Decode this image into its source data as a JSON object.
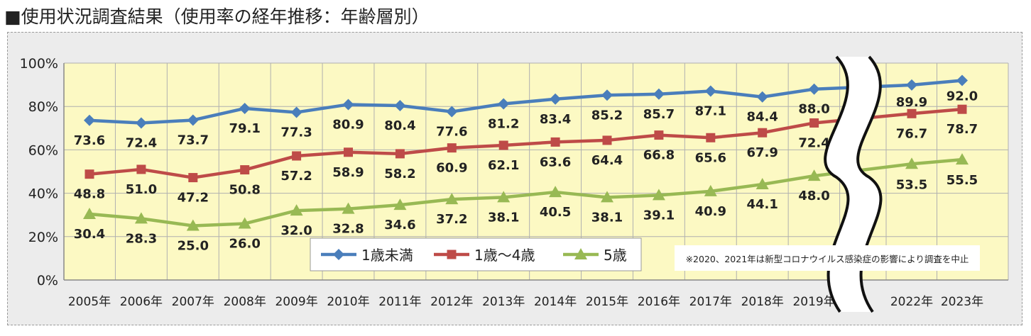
{
  "title": "■使用状況調査結果（使用率の経年推移：年齢層別）",
  "colors": {
    "plot_bg": "#fcf9c3",
    "grid": "#b0b0b0",
    "series1": "#4a7ebb",
    "series2": "#be4b48",
    "series3": "#98b954"
  },
  "chart_data": {
    "type": "line",
    "title": "使用状況調査結果（使用率の経年推移：年齢層別）",
    "categories": [
      "2005年",
      "2006年",
      "2007年",
      "2008年",
      "2009年",
      "2010年",
      "2011年",
      "2012年",
      "2013年",
      "2014年",
      "2015年",
      "2016年",
      "2017年",
      "2018年",
      "2019年",
      "2022年",
      "2023年"
    ],
    "y_ticks": [
      "0%",
      "20%",
      "40%",
      "60%",
      "80%",
      "100%"
    ],
    "ylim": [
      0,
      100
    ],
    "grid": true,
    "legend_position": "bottom-center",
    "axis_break": "between 2019年 and 2022年",
    "series": [
      {
        "name": "1歳未満",
        "marker": "diamond",
        "values": [
          73.6,
          72.4,
          73.7,
          79.1,
          77.3,
          80.9,
          80.4,
          77.6,
          81.2,
          83.4,
          85.2,
          85.7,
          87.1,
          84.4,
          88.0,
          89.9,
          92.0
        ],
        "labels": [
          "73.6",
          "72.4",
          "73.7",
          "79.1",
          "77.3",
          "80.9",
          "80.4",
          "77.6",
          "81.2",
          "83.4",
          "85.2",
          "85.7",
          "87.1",
          "84.4",
          "88.0",
          "89.9",
          "92.0"
        ]
      },
      {
        "name": "1歳～4歳",
        "marker": "square",
        "values": [
          48.8,
          51.0,
          47.2,
          50.8,
          57.2,
          58.9,
          58.2,
          60.9,
          62.1,
          63.6,
          64.4,
          66.8,
          65.6,
          67.9,
          72.4,
          76.7,
          78.7
        ],
        "labels": [
          "48.8",
          "51.0",
          "47.2",
          "50.8",
          "57.2",
          "58.9",
          "58.2",
          "60.9",
          "62.1",
          "63.6",
          "64.4",
          "66.8",
          "65.6",
          "67.9",
          "72.4",
          "76.7",
          "78.7"
        ]
      },
      {
        "name": "5歳",
        "marker": "triangle",
        "values": [
          30.4,
          28.3,
          25.0,
          26.0,
          32.0,
          32.8,
          34.6,
          37.2,
          38.1,
          40.5,
          38.1,
          39.1,
          40.9,
          44.1,
          48.0,
          53.5,
          55.5
        ],
        "labels": [
          "30.4",
          "28.3",
          "25.0",
          "26.0",
          "32.0",
          "32.8",
          "34.6",
          "37.2",
          "38.1",
          "40.5",
          "38.1",
          "39.1",
          "40.9",
          "44.1",
          "48.0",
          "53.5",
          "55.5"
        ]
      }
    ],
    "annotation": "※2020、2021年は新型コロナウイルス感染症の影響により調査を中止"
  }
}
